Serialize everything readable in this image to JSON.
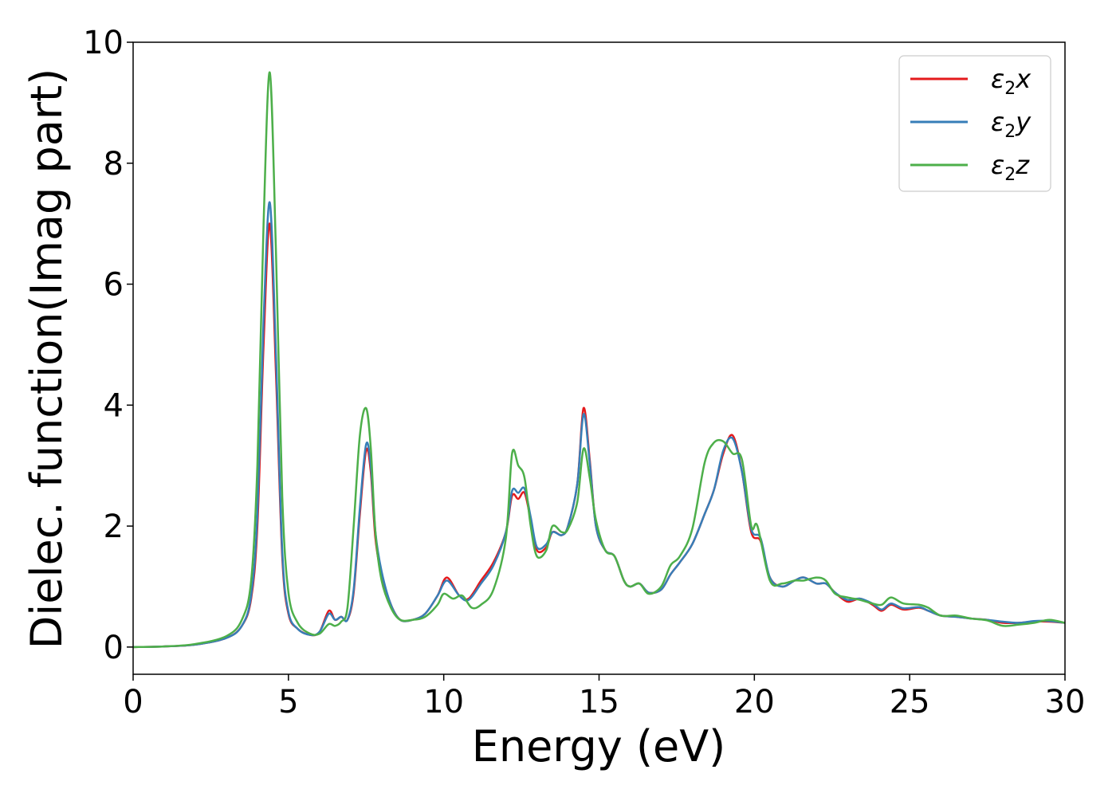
{
  "chart_data": {
    "type": "line",
    "title": "",
    "xlabel": "Energy (eV)",
    "ylabel": "Dielec. function(Imag part)",
    "xlim": [
      0,
      30
    ],
    "ylim": [
      -0.45,
      10
    ],
    "xticks": [
      0,
      5,
      10,
      15,
      20,
      25,
      30
    ],
    "xtick_labels": [
      "0",
      "5",
      "10",
      "15",
      "20",
      "25",
      "30"
    ],
    "yticks": [
      0,
      2,
      4,
      6,
      8,
      10
    ],
    "ytick_labels": [
      "0",
      "2",
      "4",
      "6",
      "8",
      "10"
    ],
    "grid": false,
    "legend_position": "top-right",
    "series": [
      {
        "name": "ε2x",
        "legend_base": "ε",
        "legend_sub": "2",
        "legend_suffix": "x",
        "color": "#e41a1c",
        "points": [
          [
            0,
            0
          ],
          [
            1,
            0.01
          ],
          [
            2,
            0.04
          ],
          [
            3,
            0.15
          ],
          [
            3.5,
            0.35
          ],
          [
            3.8,
            0.8
          ],
          [
            4.0,
            2.0
          ],
          [
            4.2,
            5.0
          ],
          [
            4.4,
            7.0
          ],
          [
            4.6,
            4.5
          ],
          [
            4.8,
            1.5
          ],
          [
            5.0,
            0.55
          ],
          [
            5.3,
            0.3
          ],
          [
            5.7,
            0.2
          ],
          [
            6.0,
            0.25
          ],
          [
            6.3,
            0.6
          ],
          [
            6.5,
            0.45
          ],
          [
            6.7,
            0.5
          ],
          [
            6.9,
            0.45
          ],
          [
            7.1,
            0.9
          ],
          [
            7.3,
            2.2
          ],
          [
            7.5,
            3.25
          ],
          [
            7.65,
            2.9
          ],
          [
            7.8,
            1.8
          ],
          [
            8.0,
            1.2
          ],
          [
            8.3,
            0.7
          ],
          [
            8.6,
            0.45
          ],
          [
            9.0,
            0.45
          ],
          [
            9.4,
            0.55
          ],
          [
            9.8,
            0.85
          ],
          [
            10.1,
            1.15
          ],
          [
            10.5,
            0.85
          ],
          [
            10.8,
            0.8
          ],
          [
            11.2,
            1.1
          ],
          [
            11.6,
            1.4
          ],
          [
            12.0,
            1.9
          ],
          [
            12.2,
            2.5
          ],
          [
            12.4,
            2.45
          ],
          [
            12.6,
            2.55
          ],
          [
            12.8,
            2.1
          ],
          [
            13.0,
            1.6
          ],
          [
            13.3,
            1.65
          ],
          [
            13.5,
            1.9
          ],
          [
            13.8,
            1.85
          ],
          [
            14.0,
            2.0
          ],
          [
            14.3,
            2.7
          ],
          [
            14.5,
            3.95
          ],
          [
            14.7,
            3.1
          ],
          [
            14.9,
            2.0
          ],
          [
            15.2,
            1.6
          ],
          [
            15.5,
            1.5
          ],
          [
            15.8,
            1.1
          ],
          [
            16.0,
            1.0
          ],
          [
            16.3,
            1.05
          ],
          [
            16.6,
            0.9
          ],
          [
            17.0,
            0.95
          ],
          [
            17.3,
            1.2
          ],
          [
            17.6,
            1.4
          ],
          [
            18.0,
            1.7
          ],
          [
            18.4,
            2.2
          ],
          [
            18.7,
            2.6
          ],
          [
            19.0,
            3.2
          ],
          [
            19.3,
            3.5
          ],
          [
            19.6,
            2.9
          ],
          [
            19.9,
            1.9
          ],
          [
            20.2,
            1.75
          ],
          [
            20.5,
            1.15
          ],
          [
            20.9,
            1.0
          ],
          [
            21.3,
            1.1
          ],
          [
            21.6,
            1.15
          ],
          [
            22.0,
            1.05
          ],
          [
            22.3,
            1.05
          ],
          [
            22.6,
            0.9
          ],
          [
            23.0,
            0.75
          ],
          [
            23.4,
            0.8
          ],
          [
            23.8,
            0.7
          ],
          [
            24.1,
            0.6
          ],
          [
            24.4,
            0.7
          ],
          [
            24.8,
            0.62
          ],
          [
            25.3,
            0.65
          ],
          [
            25.6,
            0.6
          ],
          [
            26.0,
            0.52
          ],
          [
            26.5,
            0.5
          ],
          [
            27.0,
            0.47
          ],
          [
            27.5,
            0.45
          ],
          [
            28.0,
            0.4
          ],
          [
            28.5,
            0.4
          ],
          [
            29.0,
            0.42
          ],
          [
            29.5,
            0.42
          ],
          [
            30,
            0.4
          ]
        ]
      },
      {
        "name": "ε2y",
        "legend_base": "ε",
        "legend_sub": "2",
        "legend_suffix": "y",
        "color": "#377eb8",
        "points": [
          [
            0,
            0
          ],
          [
            1,
            0.01
          ],
          [
            2,
            0.04
          ],
          [
            3,
            0.15
          ],
          [
            3.5,
            0.35
          ],
          [
            3.8,
            0.85
          ],
          [
            4.0,
            2.2
          ],
          [
            4.2,
            5.4
          ],
          [
            4.4,
            7.35
          ],
          [
            4.6,
            4.8
          ],
          [
            4.8,
            1.6
          ],
          [
            5.0,
            0.58
          ],
          [
            5.3,
            0.3
          ],
          [
            5.7,
            0.2
          ],
          [
            6.0,
            0.25
          ],
          [
            6.3,
            0.55
          ],
          [
            6.5,
            0.45
          ],
          [
            6.7,
            0.5
          ],
          [
            6.9,
            0.45
          ],
          [
            7.1,
            0.95
          ],
          [
            7.3,
            2.3
          ],
          [
            7.5,
            3.35
          ],
          [
            7.65,
            3.0
          ],
          [
            7.8,
            1.9
          ],
          [
            8.0,
            1.25
          ],
          [
            8.3,
            0.7
          ],
          [
            8.6,
            0.45
          ],
          [
            9.0,
            0.45
          ],
          [
            9.4,
            0.55
          ],
          [
            9.8,
            0.85
          ],
          [
            10.1,
            1.1
          ],
          [
            10.5,
            0.85
          ],
          [
            10.8,
            0.78
          ],
          [
            11.2,
            1.05
          ],
          [
            11.6,
            1.35
          ],
          [
            12.0,
            1.9
          ],
          [
            12.2,
            2.58
          ],
          [
            12.4,
            2.55
          ],
          [
            12.6,
            2.62
          ],
          [
            12.8,
            2.15
          ],
          [
            13.0,
            1.65
          ],
          [
            13.3,
            1.7
          ],
          [
            13.5,
            1.9
          ],
          [
            13.8,
            1.85
          ],
          [
            14.0,
            2.0
          ],
          [
            14.3,
            2.7
          ],
          [
            14.5,
            3.85
          ],
          [
            14.7,
            3.05
          ],
          [
            14.9,
            2.0
          ],
          [
            15.2,
            1.6
          ],
          [
            15.5,
            1.5
          ],
          [
            15.8,
            1.1
          ],
          [
            16.0,
            1.0
          ],
          [
            16.3,
            1.05
          ],
          [
            16.6,
            0.9
          ],
          [
            17.0,
            0.95
          ],
          [
            17.3,
            1.2
          ],
          [
            17.6,
            1.4
          ],
          [
            18.0,
            1.7
          ],
          [
            18.4,
            2.2
          ],
          [
            18.7,
            2.6
          ],
          [
            19.0,
            3.25
          ],
          [
            19.3,
            3.45
          ],
          [
            19.6,
            2.9
          ],
          [
            19.9,
            1.95
          ],
          [
            20.2,
            1.8
          ],
          [
            20.5,
            1.15
          ],
          [
            20.9,
            1.0
          ],
          [
            21.3,
            1.1
          ],
          [
            21.6,
            1.15
          ],
          [
            22.0,
            1.05
          ],
          [
            22.3,
            1.05
          ],
          [
            22.6,
            0.9
          ],
          [
            23.0,
            0.78
          ],
          [
            23.4,
            0.8
          ],
          [
            23.8,
            0.72
          ],
          [
            24.1,
            0.62
          ],
          [
            24.4,
            0.72
          ],
          [
            24.8,
            0.64
          ],
          [
            25.3,
            0.66
          ],
          [
            25.6,
            0.6
          ],
          [
            26.0,
            0.52
          ],
          [
            26.5,
            0.5
          ],
          [
            27.0,
            0.47
          ],
          [
            27.5,
            0.45
          ],
          [
            28.0,
            0.42
          ],
          [
            28.5,
            0.4
          ],
          [
            29.0,
            0.43
          ],
          [
            29.5,
            0.43
          ],
          [
            30,
            0.4
          ]
        ]
      },
      {
        "name": "ε2z",
        "legend_base": "ε",
        "legend_sub": "2",
        "legend_suffix": "z",
        "color": "#4daf4a",
        "points": [
          [
            0,
            0
          ],
          [
            1,
            0.01
          ],
          [
            2,
            0.05
          ],
          [
            3,
            0.18
          ],
          [
            3.5,
            0.45
          ],
          [
            3.8,
            1.1
          ],
          [
            4.0,
            3.0
          ],
          [
            4.2,
            7.0
          ],
          [
            4.4,
            9.5
          ],
          [
            4.6,
            6.5
          ],
          [
            4.8,
            2.5
          ],
          [
            5.0,
            0.9
          ],
          [
            5.3,
            0.4
          ],
          [
            5.7,
            0.22
          ],
          [
            6.0,
            0.22
          ],
          [
            6.3,
            0.38
          ],
          [
            6.5,
            0.35
          ],
          [
            6.7,
            0.42
          ],
          [
            6.9,
            0.65
          ],
          [
            7.1,
            2.0
          ],
          [
            7.3,
            3.5
          ],
          [
            7.5,
            3.95
          ],
          [
            7.65,
            3.3
          ],
          [
            7.8,
            1.9
          ],
          [
            8.0,
            1.1
          ],
          [
            8.3,
            0.65
          ],
          [
            8.6,
            0.45
          ],
          [
            9.0,
            0.45
          ],
          [
            9.4,
            0.5
          ],
          [
            9.8,
            0.7
          ],
          [
            10.0,
            0.88
          ],
          [
            10.3,
            0.8
          ],
          [
            10.6,
            0.85
          ],
          [
            10.9,
            0.65
          ],
          [
            11.2,
            0.7
          ],
          [
            11.6,
            0.95
          ],
          [
            12.0,
            1.8
          ],
          [
            12.2,
            3.2
          ],
          [
            12.4,
            3.0
          ],
          [
            12.6,
            2.8
          ],
          [
            12.8,
            2.0
          ],
          [
            13.0,
            1.5
          ],
          [
            13.3,
            1.6
          ],
          [
            13.5,
            2.0
          ],
          [
            13.8,
            1.9
          ],
          [
            14.0,
            1.95
          ],
          [
            14.3,
            2.4
          ],
          [
            14.5,
            3.28
          ],
          [
            14.7,
            2.8
          ],
          [
            14.9,
            2.1
          ],
          [
            15.2,
            1.6
          ],
          [
            15.5,
            1.5
          ],
          [
            15.8,
            1.1
          ],
          [
            16.0,
            1.0
          ],
          [
            16.3,
            1.05
          ],
          [
            16.6,
            0.88
          ],
          [
            17.0,
            1.0
          ],
          [
            17.3,
            1.35
          ],
          [
            17.6,
            1.5
          ],
          [
            18.0,
            1.95
          ],
          [
            18.4,
            3.05
          ],
          [
            18.7,
            3.38
          ],
          [
            19.0,
            3.4
          ],
          [
            19.3,
            3.2
          ],
          [
            19.6,
            3.1
          ],
          [
            19.9,
            2.0
          ],
          [
            20.1,
            2.0
          ],
          [
            20.5,
            1.1
          ],
          [
            20.9,
            1.05
          ],
          [
            21.3,
            1.1
          ],
          [
            21.6,
            1.1
          ],
          [
            22.0,
            1.15
          ],
          [
            22.3,
            1.1
          ],
          [
            22.6,
            0.88
          ],
          [
            23.0,
            0.82
          ],
          [
            23.4,
            0.78
          ],
          [
            23.8,
            0.72
          ],
          [
            24.1,
            0.7
          ],
          [
            24.4,
            0.82
          ],
          [
            24.8,
            0.72
          ],
          [
            25.3,
            0.7
          ],
          [
            25.6,
            0.65
          ],
          [
            26.0,
            0.52
          ],
          [
            26.5,
            0.52
          ],
          [
            27.0,
            0.47
          ],
          [
            27.5,
            0.44
          ],
          [
            28.0,
            0.35
          ],
          [
            28.5,
            0.37
          ],
          [
            29.0,
            0.4
          ],
          [
            29.5,
            0.45
          ],
          [
            30,
            0.4
          ]
        ]
      }
    ]
  }
}
